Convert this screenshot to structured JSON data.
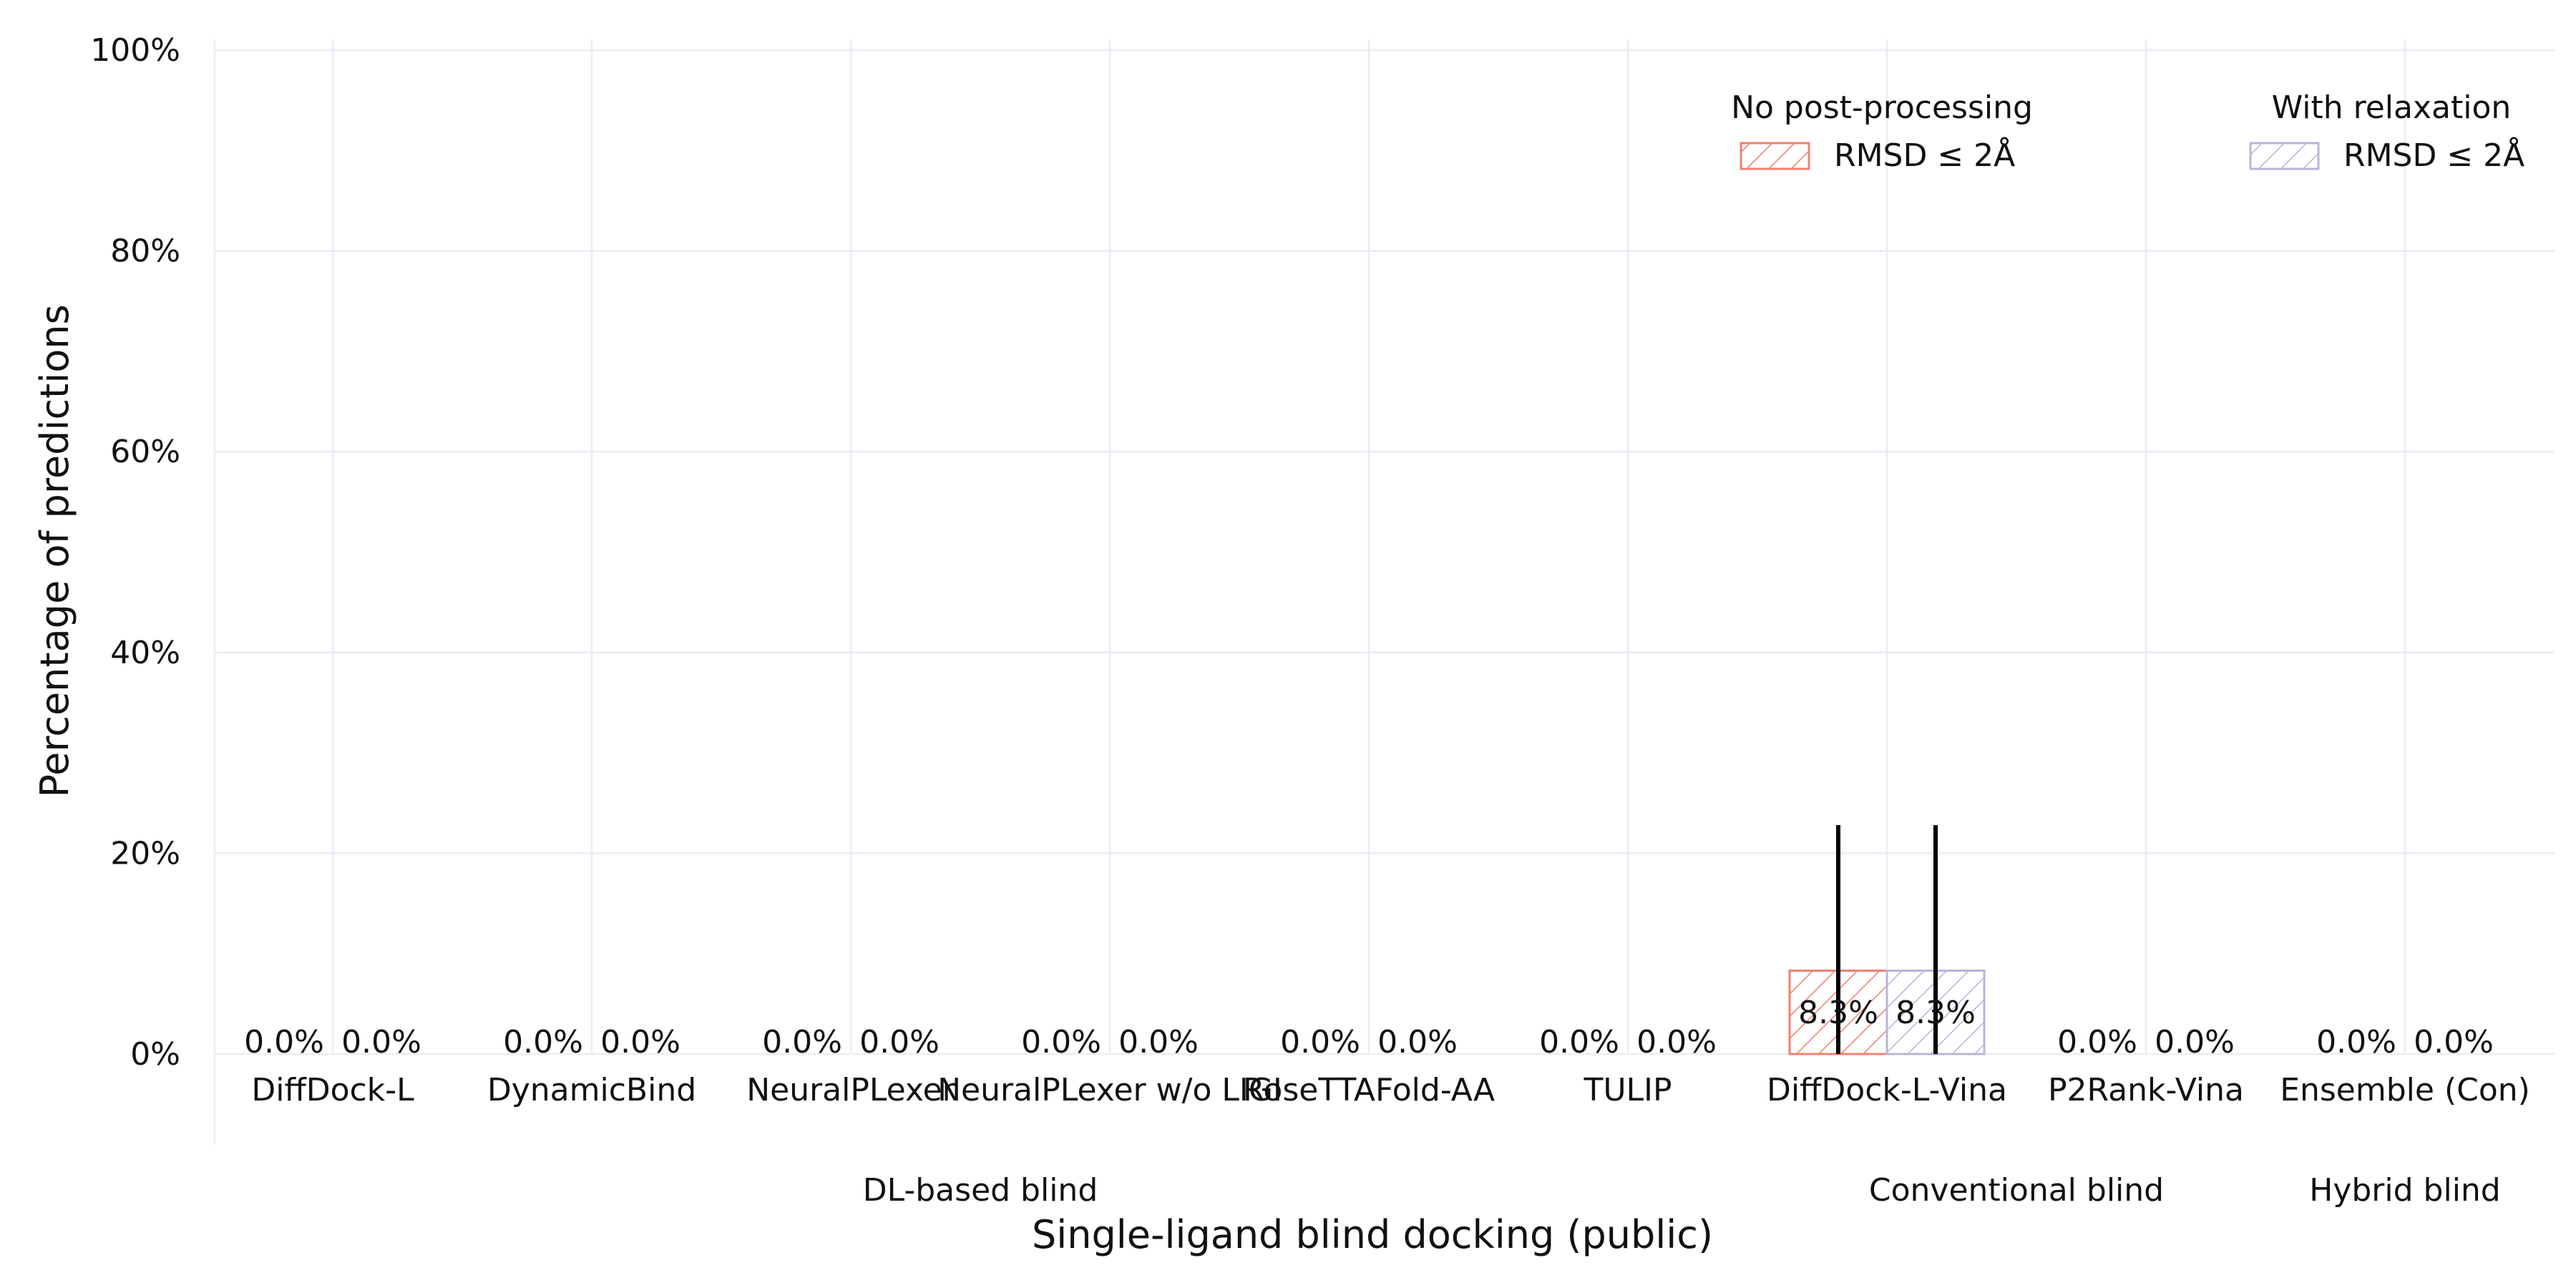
{
  "chart_data": {
    "type": "bar",
    "title": "",
    "xlabel": "Single-ligand blind docking (public)",
    "ylabel": "Percentage of predictions",
    "ylim": [
      0,
      100
    ],
    "yticks": [
      "0%",
      "20%",
      "40%",
      "60%",
      "80%",
      "100%"
    ],
    "grid": true,
    "categories": [
      "DiffDock-L",
      "DynamicBind",
      "NeuralPLexer",
      "NeuralPLexer w/o LIGI",
      "RoseTTAFold-AA",
      "TULIP",
      "DiffDock-L-Vina",
      "P2Rank-Vina",
      "Ensemble (Con)"
    ],
    "groups": [
      {
        "label": "DL-based blind",
        "categories": [
          0,
          5
        ]
      },
      {
        "label": "Conventional blind",
        "categories": [
          6,
          7
        ]
      },
      {
        "label": "Hybrid blind",
        "categories": [
          8,
          8
        ]
      }
    ],
    "series": [
      {
        "name": "RMSD ≤ 2Å",
        "legend_title": "No post-processing",
        "color": "#f08070",
        "values": [
          0.0,
          0.0,
          0.0,
          0.0,
          0.0,
          0.0,
          8.3,
          0.0,
          0.0
        ],
        "labels": [
          "0.0%",
          "0.0%",
          "0.0%",
          "0.0%",
          "0.0%",
          "0.0%",
          "8.3%",
          "0.0%",
          "0.0%"
        ],
        "error_upper": [
          null,
          null,
          null,
          null,
          null,
          null,
          22.8,
          null,
          null
        ]
      },
      {
        "name": "RMSD ≤ 2Å",
        "legend_title": "With relaxation",
        "color": "#b8b4d8",
        "values": [
          0.0,
          0.0,
          0.0,
          0.0,
          0.0,
          0.0,
          8.3,
          0.0,
          0.0
        ],
        "labels": [
          "0.0%",
          "0.0%",
          "0.0%",
          "0.0%",
          "0.0%",
          "0.0%",
          "8.3%",
          "0.0%",
          "0.0%"
        ],
        "error_upper": [
          null,
          null,
          null,
          null,
          null,
          null,
          22.8,
          null,
          null
        ]
      }
    ],
    "hatch": "diagonal",
    "legend_placement": "top-right"
  }
}
